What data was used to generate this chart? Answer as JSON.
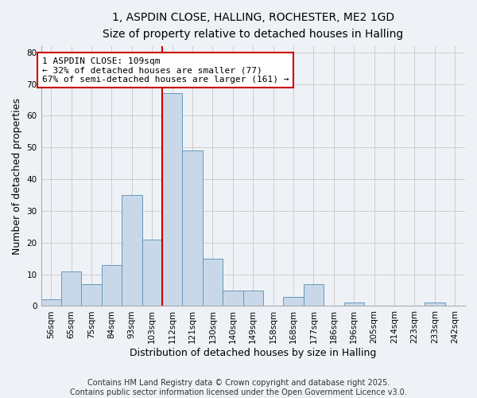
{
  "title_line1": "1, ASPDIN CLOSE, HALLING, ROCHESTER, ME2 1GD",
  "title_line2": "Size of property relative to detached houses in Halling",
  "xlabel": "Distribution of detached houses by size in Halling",
  "ylabel": "Number of detached properties",
  "categories": [
    "56sqm",
    "65sqm",
    "75sqm",
    "84sqm",
    "93sqm",
    "103sqm",
    "112sqm",
    "121sqm",
    "130sqm",
    "140sqm",
    "149sqm",
    "158sqm",
    "168sqm",
    "177sqm",
    "186sqm",
    "196sqm",
    "205sqm",
    "214sqm",
    "223sqm",
    "233sqm",
    "242sqm"
  ],
  "values": [
    2,
    11,
    7,
    13,
    35,
    21,
    67,
    49,
    15,
    5,
    5,
    0,
    3,
    7,
    0,
    1,
    0,
    0,
    0,
    1,
    0
  ],
  "bar_color": "#c8d8e8",
  "bar_edge_color": "#6699bb",
  "vline_x": 5.5,
  "vline_color": "#cc0000",
  "annotation_text": "1 ASPDIN CLOSE: 109sqm\n← 32% of detached houses are smaller (77)\n67% of semi-detached houses are larger (161) →",
  "annotation_box_color": "#ffffff",
  "annotation_box_edge_color": "#cc0000",
  "ylim": [
    0,
    82
  ],
  "yticks": [
    0,
    10,
    20,
    30,
    40,
    50,
    60,
    70,
    80
  ],
  "grid_color": "#cccccc",
  "bg_color": "#eef2f7",
  "footer_text": "Contains HM Land Registry data © Crown copyright and database right 2025.\nContains public sector information licensed under the Open Government Licence v3.0.",
  "title_fontsize": 10,
  "subtitle_fontsize": 9.5,
  "label_fontsize": 9,
  "tick_fontsize": 7.5,
  "annotation_fontsize": 8,
  "footer_fontsize": 7
}
